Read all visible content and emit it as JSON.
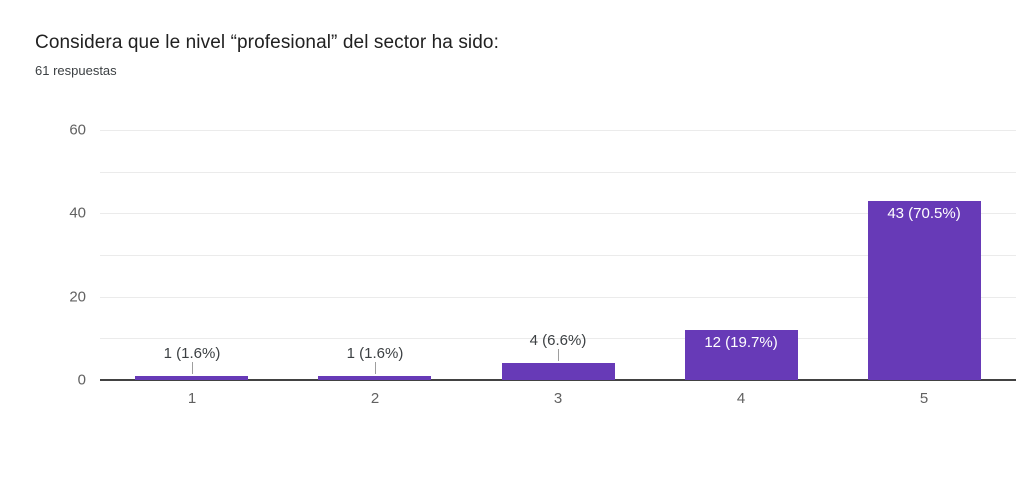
{
  "header": {
    "title": "Considera que le nivel “profesional” del sector ha sido:",
    "subtitle": "61 respuestas"
  },
  "chart_data": {
    "type": "bar",
    "title": "Considera que le nivel “profesional” del sector ha sido:",
    "subtitle": "61 respuestas",
    "total_responses": 61,
    "categories": [
      "1",
      "2",
      "3",
      "4",
      "5"
    ],
    "values": [
      1,
      1,
      4,
      12,
      43
    ],
    "percentages": [
      1.6,
      1.6,
      6.6,
      19.7,
      70.5
    ],
    "bar_labels": [
      "1 (1.6%)",
      "1 (1.6%)",
      "4 (6.6%)",
      "12 (19.7%)",
      "43 (70.5%)"
    ],
    "xlabel": "",
    "ylabel": "",
    "ylim": [
      0,
      60
    ],
    "yticks": [
      0,
      20,
      40,
      60
    ],
    "gridline_step": 10,
    "grid": true,
    "legend": false,
    "colors": {
      "bar": "#673ab7",
      "gridline": "#ebebeb",
      "baseline": "#424242",
      "axis_text": "#616161",
      "outside_label_text": "#3c4043",
      "inside_label_text": "#ffffff",
      "connector": "#9e9e9e"
    }
  }
}
